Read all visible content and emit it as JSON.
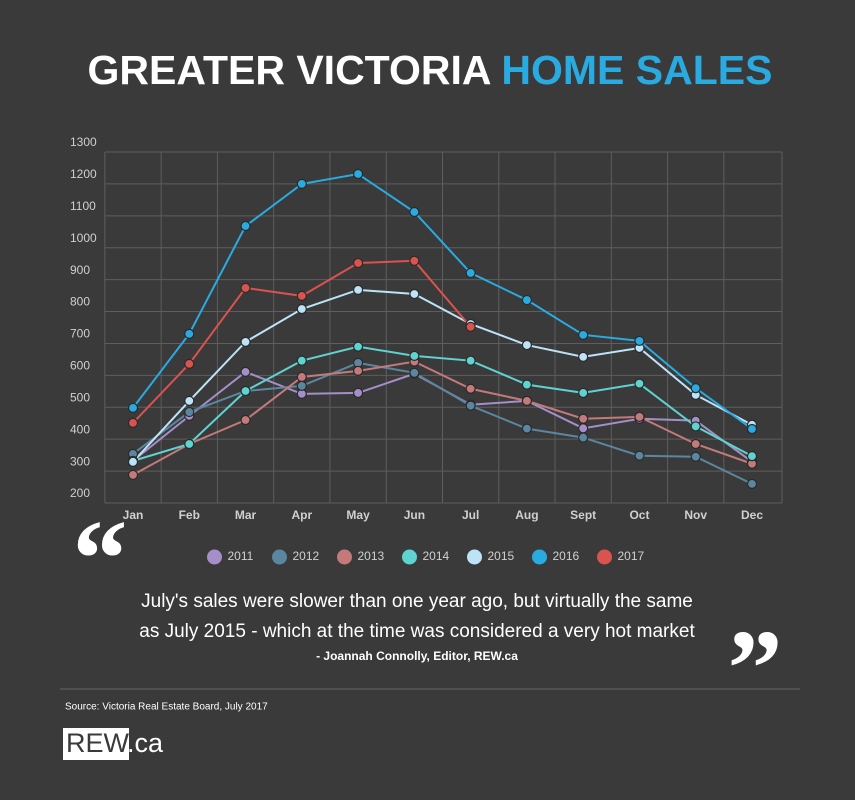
{
  "chart_data": {
    "type": "line",
    "title": [
      "GREATER VICTORIA",
      "HOME SALES"
    ],
    "categories": [
      "Jan",
      "Feb",
      "Mar",
      "Apr",
      "May",
      "Jun",
      "Jul",
      "Aug",
      "Sept",
      "Oct",
      "Nov",
      "Dec"
    ],
    "series": [
      {
        "name": "2011",
        "color": "#a58fc9",
        "values": [
          332,
          473,
          611,
          542,
          545,
          605,
          508,
          520,
          434,
          464,
          458,
          329
        ]
      },
      {
        "name": "2012",
        "color": "#5b86a0",
        "values": [
          354,
          485,
          551,
          567,
          639,
          608,
          505,
          433,
          405,
          348,
          345,
          260
        ]
      },
      {
        "name": "2013",
        "color": "#c47a7a",
        "values": [
          288,
          385,
          460,
          595,
          614,
          643,
          558,
          520,
          464,
          470,
          385,
          323
        ]
      },
      {
        "name": "2014",
        "color": "#5fd3cf",
        "values": [
          332,
          385,
          551,
          646,
          690,
          661,
          646,
          571,
          545,
          574,
          440,
          347
        ]
      },
      {
        "name": "2015",
        "color": "#bde3f7",
        "values": [
          329,
          520,
          705,
          808,
          868,
          855,
          761,
          695,
          658,
          686,
          539,
          445
        ]
      },
      {
        "name": "2016",
        "color": "#29abe2",
        "values": [
          498,
          730,
          1068,
          1200,
          1231,
          1112,
          921,
          836,
          727,
          708,
          560,
          432
        ]
      },
      {
        "name": "2017",
        "color": "#d9534f",
        "values": [
          451,
          636,
          874,
          849,
          952,
          959,
          752,
          null,
          null,
          null,
          null,
          null
        ]
      }
    ],
    "ylim": [
      200,
      1300
    ],
    "yticks": [
      200,
      300,
      400,
      500,
      600,
      700,
      800,
      900,
      1000,
      1100,
      1200,
      1300
    ],
    "grid": true,
    "legend": "bottom",
    "quote_open": "“",
    "quote_close": "”",
    "quote": [
      "July's sales were slower than one year ago, but virtually the same",
      "as July 2015 - which at the time was considered a very hot market"
    ],
    "quote_author": "- Joannah Connolly, Editor, REW.ca",
    "source": "Source: Victoria Real Estate Board, July 2017",
    "logo": [
      "REW",
      ".ca"
    ]
  }
}
